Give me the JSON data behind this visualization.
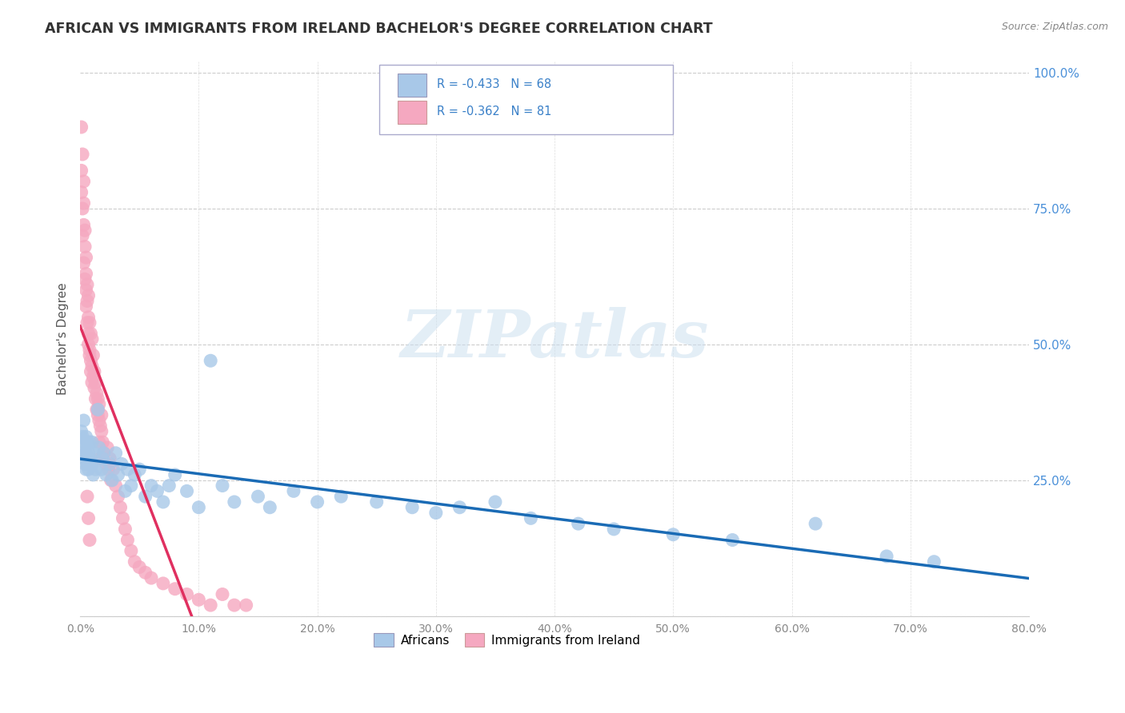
{
  "title": "AFRICAN VS IMMIGRANTS FROM IRELAND BACHELOR'S DEGREE CORRELATION CHART",
  "source": "Source: ZipAtlas.com",
  "ylabel": "Bachelor's Degree",
  "legend_africans": "Africans",
  "legend_ireland": "Immigrants from Ireland",
  "africans_R": "-0.433",
  "africans_N": "68",
  "ireland_R": "-0.362",
  "ireland_N": "81",
  "africans_color": "#a8c8e8",
  "ireland_color": "#f5a8c0",
  "africans_line_color": "#1a6bb5",
  "ireland_line_color": "#e03060",
  "ireland_line_dashed_color": "#e0a0b8",
  "background_color": "#ffffff",
  "xlim": [
    0.0,
    0.8
  ],
  "ylim": [
    0.0,
    1.02
  ],
  "africans_x": [
    0.001,
    0.001,
    0.002,
    0.002,
    0.003,
    0.003,
    0.004,
    0.004,
    0.005,
    0.005,
    0.005,
    0.006,
    0.006,
    0.007,
    0.007,
    0.008,
    0.008,
    0.009,
    0.01,
    0.01,
    0.011,
    0.012,
    0.013,
    0.015,
    0.016,
    0.018,
    0.019,
    0.02,
    0.022,
    0.025,
    0.027,
    0.03,
    0.032,
    0.035,
    0.038,
    0.04,
    0.043,
    0.046,
    0.05,
    0.055,
    0.06,
    0.065,
    0.07,
    0.075,
    0.08,
    0.09,
    0.1,
    0.11,
    0.12,
    0.13,
    0.15,
    0.16,
    0.18,
    0.2,
    0.22,
    0.25,
    0.28,
    0.3,
    0.32,
    0.35,
    0.38,
    0.42,
    0.45,
    0.5,
    0.55,
    0.62,
    0.68,
    0.72
  ],
  "africans_y": [
    0.34,
    0.31,
    0.33,
    0.3,
    0.36,
    0.29,
    0.32,
    0.28,
    0.33,
    0.3,
    0.27,
    0.32,
    0.28,
    0.3,
    0.27,
    0.32,
    0.28,
    0.29,
    0.32,
    0.28,
    0.26,
    0.3,
    0.27,
    0.38,
    0.31,
    0.27,
    0.29,
    0.3,
    0.26,
    0.28,
    0.25,
    0.3,
    0.26,
    0.28,
    0.23,
    0.27,
    0.24,
    0.26,
    0.27,
    0.22,
    0.24,
    0.23,
    0.21,
    0.24,
    0.26,
    0.23,
    0.2,
    0.47,
    0.24,
    0.21,
    0.22,
    0.2,
    0.23,
    0.21,
    0.22,
    0.21,
    0.2,
    0.19,
    0.2,
    0.21,
    0.18,
    0.17,
    0.16,
    0.15,
    0.14,
    0.17,
    0.11,
    0.1
  ],
  "ireland_x": [
    0.001,
    0.001,
    0.001,
    0.002,
    0.002,
    0.002,
    0.003,
    0.003,
    0.003,
    0.003,
    0.004,
    0.004,
    0.004,
    0.005,
    0.005,
    0.005,
    0.005,
    0.006,
    0.006,
    0.006,
    0.007,
    0.007,
    0.007,
    0.007,
    0.008,
    0.008,
    0.008,
    0.009,
    0.009,
    0.009,
    0.01,
    0.01,
    0.01,
    0.011,
    0.011,
    0.012,
    0.012,
    0.013,
    0.013,
    0.014,
    0.014,
    0.015,
    0.015,
    0.016,
    0.016,
    0.017,
    0.018,
    0.018,
    0.019,
    0.02,
    0.022,
    0.023,
    0.024,
    0.025,
    0.026,
    0.028,
    0.03,
    0.032,
    0.034,
    0.036,
    0.038,
    0.04,
    0.043,
    0.046,
    0.05,
    0.055,
    0.06,
    0.07,
    0.08,
    0.09,
    0.1,
    0.11,
    0.12,
    0.13,
    0.14,
    0.015,
    0.016,
    0.017,
    0.006,
    0.007,
    0.008
  ],
  "ireland_y": [
    0.9,
    0.82,
    0.78,
    0.85,
    0.75,
    0.7,
    0.8,
    0.72,
    0.65,
    0.76,
    0.68,
    0.62,
    0.71,
    0.63,
    0.57,
    0.66,
    0.6,
    0.58,
    0.54,
    0.61,
    0.55,
    0.5,
    0.59,
    0.52,
    0.49,
    0.54,
    0.48,
    0.47,
    0.52,
    0.45,
    0.46,
    0.51,
    0.43,
    0.44,
    0.48,
    0.42,
    0.45,
    0.4,
    0.43,
    0.38,
    0.41,
    0.37,
    0.4,
    0.36,
    0.39,
    0.35,
    0.34,
    0.37,
    0.32,
    0.3,
    0.28,
    0.31,
    0.27,
    0.29,
    0.25,
    0.27,
    0.24,
    0.22,
    0.2,
    0.18,
    0.16,
    0.14,
    0.12,
    0.1,
    0.09,
    0.08,
    0.07,
    0.06,
    0.05,
    0.04,
    0.03,
    0.02,
    0.04,
    0.02,
    0.02,
    0.38,
    0.32,
    0.29,
    0.22,
    0.18,
    0.14
  ]
}
